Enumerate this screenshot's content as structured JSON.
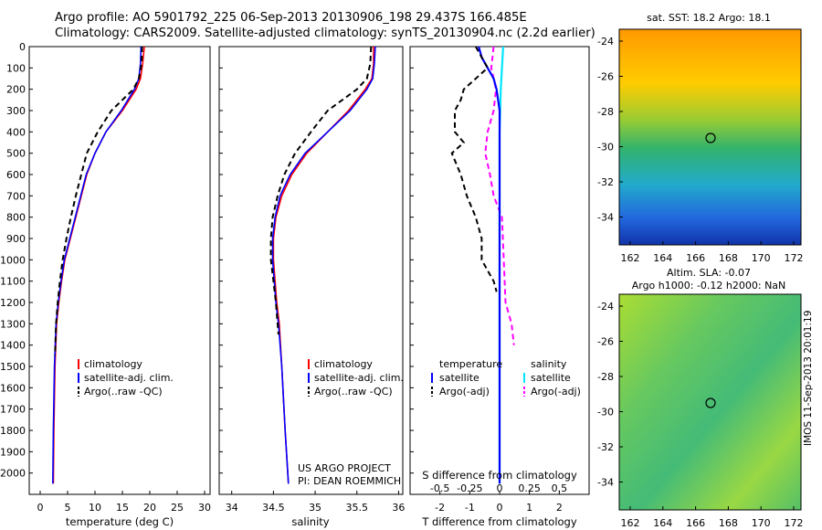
{
  "title_line1": "Argo profile: AO 5901792_225 06-Sep-2013 20130906_198 29.437S 166.485E",
  "title_line2": "Climatology: CARS2009. Satellite-adjusted climatology: synTS_20130904.nc (2.2d earlier)",
  "side_stamp": "IMOS 11-Sep-2013 20:01:19",
  "colors": {
    "climatology": "#ff0000",
    "satellite": "#0000ff",
    "argo": "#000000",
    "satellite_s": "#00e5ff",
    "argo_s": "#ff00ff"
  },
  "panel_temperature": {
    "xlabel": "temperature (deg C)",
    "xticks": [
      "0",
      "5",
      "10",
      "15",
      "20",
      "25",
      "30"
    ],
    "xlim": [
      -2,
      31
    ],
    "legend": [
      "climatology",
      "satellite-adj. clim.",
      "Argo(..raw -QC)"
    ]
  },
  "panel_salinity": {
    "xlabel": "salinity",
    "xticks": [
      "34",
      "34.5",
      "35",
      "35.5",
      "36"
    ],
    "xlim": [
      33.85,
      36.05
    ],
    "legend": [
      "climatology",
      "satellite-adj. clim.",
      "Argo(..raw -QC)"
    ],
    "note1": "US ARGO PROJECT",
    "note2": "PI: DEAN ROEMMICH"
  },
  "panel_difference": {
    "xlabel": "T difference from climatology",
    "top_label": "S difference from climatology",
    "xticks_T": [
      "-2",
      "-1",
      "0",
      "1",
      "2"
    ],
    "xticks_S": [
      "-0.5",
      "-0.25",
      "0",
      "0.25",
      "0.5"
    ],
    "xlim_T": [
      -3,
      3
    ],
    "legend_T_title": "temperature",
    "legend_S_title": "salinity",
    "legend_T": [
      "satellite",
      "Argo(-adj)"
    ],
    "legend_S": [
      "satellite",
      "Argo(-adj)"
    ]
  },
  "depth_axis": {
    "ylim": [
      0,
      2100
    ],
    "yticks": [
      "0",
      "100",
      "200",
      "300",
      "400",
      "500",
      "600",
      "700",
      "800",
      "900",
      "1000",
      "1100",
      "1200",
      "1300",
      "1400",
      "1500",
      "1600",
      "1700",
      "1800",
      "1900",
      "2000"
    ]
  },
  "map_sst": {
    "title": "sat. SST: 18.2 Argo: 18.1",
    "yticks": [
      "-24",
      "-26",
      "-28",
      "-30",
      "-32",
      "-34"
    ],
    "xticks": [
      "162",
      "164",
      "166",
      "168",
      "170",
      "172"
    ]
  },
  "map_sla": {
    "title_line1": "Altim. SLA: -0.07",
    "title_line2": "Argo h1000: -0.12 h2000: NaN",
    "yticks": [
      "-24",
      "-26",
      "-28",
      "-30",
      "-32",
      "-34"
    ],
    "xticks": [
      "162",
      "164",
      "166",
      "168",
      "170",
      "172"
    ]
  },
  "chart_data": [
    {
      "type": "line",
      "title": "",
      "xlabel": "temperature (deg C)",
      "ylabel": "",
      "xlim": [
        -2,
        31
      ],
      "ylim": [
        0,
        2100
      ],
      "series": [
        {
          "name": "climatology",
          "x": [
            19,
            18.7,
            18.3,
            17.5,
            15,
            12,
            10,
            8.5,
            7.5,
            6.5,
            5.5,
            4.5,
            3.9,
            3.4,
            3,
            2.7,
            2.5,
            2.4
          ],
          "y": [
            0,
            80,
            150,
            200,
            300,
            400,
            500,
            600,
            700,
            800,
            900,
            1000,
            1100,
            1200,
            1300,
            1500,
            1800,
            2050
          ]
        },
        {
          "name": "satellite-adj. clim.",
          "x": [
            18.4,
            18.3,
            18,
            17.2,
            14.8,
            12,
            10,
            8.4,
            7.4,
            6.4,
            5.4,
            4.4,
            3.8,
            3.3,
            2.9,
            2.6,
            2.4,
            2.3
          ],
          "y": [
            0,
            80,
            150,
            200,
            300,
            400,
            500,
            600,
            700,
            800,
            900,
            1000,
            1100,
            1200,
            1300,
            1500,
            1800,
            2050
          ]
        },
        {
          "name": "Argo(..raw -QC)",
          "x": [
            18.6,
            18.5,
            18,
            17,
            13,
            10.5,
            8.5,
            7.5,
            6.5,
            5.6,
            4.8,
            4.1,
            3.6,
            3.2,
            2.9,
            2.7
          ],
          "y": [
            0,
            80,
            150,
            200,
            300,
            400,
            500,
            600,
            700,
            800,
            900,
            1000,
            1100,
            1200,
            1300,
            1450
          ]
        }
      ]
    },
    {
      "type": "line",
      "title": "",
      "xlabel": "salinity",
      "ylabel": "",
      "xlim": [
        33.85,
        36.05
      ],
      "ylim": [
        0,
        2100
      ],
      "series": [
        {
          "name": "climatology",
          "x": [
            35.7,
            35.7,
            35.68,
            35.6,
            35.4,
            35.15,
            34.9,
            34.72,
            34.6,
            34.53,
            34.5,
            34.5,
            34.52,
            34.54,
            34.57,
            34.6,
            34.64,
            34.68
          ],
          "y": [
            0,
            80,
            150,
            200,
            300,
            400,
            500,
            600,
            700,
            800,
            900,
            1000,
            1100,
            1200,
            1300,
            1500,
            1800,
            2050
          ]
        },
        {
          "name": "satellite-adj. clim.",
          "x": [
            35.72,
            35.71,
            35.69,
            35.62,
            35.42,
            35.15,
            34.88,
            34.7,
            34.58,
            34.52,
            34.49,
            34.49,
            34.51,
            34.53,
            34.56,
            34.6,
            34.64,
            34.68
          ],
          "y": [
            0,
            80,
            150,
            200,
            300,
            400,
            500,
            600,
            700,
            800,
            900,
            1000,
            1100,
            1200,
            1300,
            1500,
            1800,
            2050
          ]
        },
        {
          "name": "Argo(..raw -QC)",
          "x": [
            35.67,
            35.66,
            35.62,
            35.5,
            35.15,
            34.95,
            34.76,
            34.63,
            34.55,
            34.49,
            34.47,
            34.47,
            34.5,
            34.53,
            34.56
          ],
          "y": [
            0,
            80,
            150,
            200,
            300,
            400,
            500,
            600,
            700,
            800,
            900,
            1000,
            1100,
            1200,
            1350
          ]
        }
      ]
    },
    {
      "type": "line",
      "title": "",
      "xlabel": "T difference from climatology",
      "ylabel": "",
      "xlim": [
        -3,
        3
      ],
      "ylim": [
        0,
        2100
      ],
      "series": [
        {
          "name": "satellite",
          "x": [
            -0.7,
            -0.6,
            -0.4,
            -0.2,
            -0.1,
            0,
            0,
            0,
            0,
            0,
            0
          ],
          "y": [
            0,
            50,
            100,
            150,
            200,
            300,
            500,
            800,
            1200,
            1600,
            2050
          ]
        },
        {
          "name": "Argo(-adj)",
          "x": [
            -0.8,
            -0.4,
            -1.2,
            -1.3,
            -1.5,
            -1.5,
            -1.2,
            -1.6,
            -1.3,
            -1.1,
            -0.8,
            -0.6,
            -0.6,
            -0.4,
            -0.2,
            -0.1
          ],
          "y": [
            0,
            100,
            200,
            250,
            300,
            400,
            450,
            500,
            600,
            700,
            800,
            900,
            1000,
            1050,
            1100,
            1150
          ]
        }
      ]
    },
    {
      "type": "line",
      "title": "",
      "xlabel": "S difference from climatology",
      "ylabel": "",
      "xlim": [
        -0.75,
        0.75
      ],
      "ylim": [
        0,
        2100
      ],
      "series": [
        {
          "name": "satellite",
          "x": [
            0.03,
            0.02,
            0.01,
            0,
            0,
            0,
            0,
            0
          ],
          "y": [
            0,
            100,
            200,
            400,
            800,
            1200,
            1600,
            2050
          ]
        },
        {
          "name": "Argo(-adj)",
          "x": [
            -0.05,
            -0.07,
            -0.03,
            -0.05,
            -0.1,
            -0.12,
            -0.08,
            -0.05,
            0.02,
            0.05,
            0.1,
            0.12
          ],
          "y": [
            0,
            100,
            200,
            300,
            400,
            500,
            600,
            700,
            800,
            1200,
            1300,
            1400
          ]
        }
      ]
    }
  ]
}
